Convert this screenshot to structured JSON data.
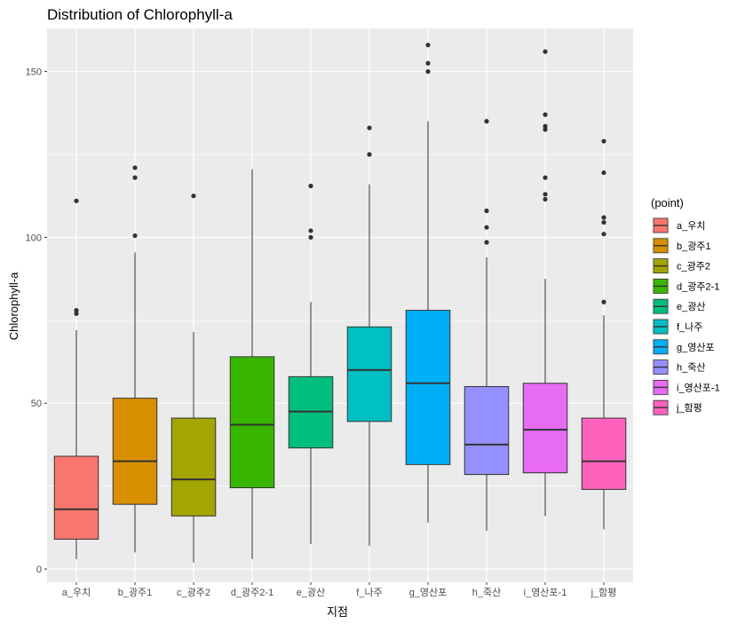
{
  "chart_data": {
    "type": "boxplot",
    "title": "Distribution of Chlorophyll-a",
    "xlabel": "지점",
    "ylabel": "Chlorophyll-a",
    "ylim": [
      -4,
      163
    ],
    "yticks": [
      0,
      50,
      100,
      150
    ],
    "grid": true,
    "legend": {
      "title": "(point)",
      "placement": "right"
    },
    "categories": [
      "a_우치",
      "b_광주1",
      "c_광주2",
      "d_광주2-1",
      "e_광산",
      "f_나주",
      "g_영산포",
      "h_죽산",
      "i_영산포-1",
      "j_함평"
    ],
    "colors": [
      "#F8766D",
      "#D89000",
      "#A3A500",
      "#39B600",
      "#00BF7D",
      "#00BFC4",
      "#00B0F6",
      "#9590FF",
      "#E76BF3",
      "#FF62BC"
    ],
    "boxes": [
      {
        "name": "a_우치",
        "min": 3,
        "q1": 9,
        "median": 18,
        "q3": 34,
        "max": 72,
        "outliers": [
          77,
          78,
          111
        ]
      },
      {
        "name": "b_광주1",
        "min": 5,
        "q1": 19.5,
        "median": 32.5,
        "q3": 51.5,
        "max": 95.5,
        "outliers": [
          100.5,
          118,
          121
        ]
      },
      {
        "name": "c_광주2",
        "min": 2,
        "q1": 16,
        "median": 27,
        "q3": 45.5,
        "max": 71.5,
        "outliers": [
          112.5
        ]
      },
      {
        "name": "d_광주2-1",
        "min": 3,
        "q1": 24.5,
        "median": 43.5,
        "q3": 64,
        "max": 120.5,
        "outliers": []
      },
      {
        "name": "e_광산",
        "min": 7.5,
        "q1": 36.5,
        "median": 47.5,
        "q3": 58,
        "max": 80.5,
        "outliers": [
          100,
          102,
          115.5
        ]
      },
      {
        "name": "f_나주",
        "min": 7,
        "q1": 44.5,
        "median": 60,
        "q3": 73,
        "max": 116,
        "outliers": [
          125,
          133
        ]
      },
      {
        "name": "g_영산포",
        "min": 14,
        "q1": 31.5,
        "median": 56,
        "q3": 78,
        "max": 135,
        "outliers": [
          150,
          152.5,
          158
        ]
      },
      {
        "name": "h_죽산",
        "min": 11.5,
        "q1": 28.5,
        "median": 37.5,
        "q3": 55,
        "max": 94,
        "outliers": [
          98.5,
          103,
          108,
          135
        ]
      },
      {
        "name": "i_영산포-1",
        "min": 16,
        "q1": 29,
        "median": 42,
        "q3": 56,
        "max": 87.5,
        "outliers": [
          111.5,
          113,
          118,
          132.5,
          133.5,
          137,
          156
        ]
      },
      {
        "name": "j_함평",
        "min": 12,
        "q1": 24,
        "median": 32.5,
        "q3": 45.5,
        "max": 76.5,
        "outliers": [
          80.5,
          101,
          104.5,
          106,
          119.5,
          129
        ]
      }
    ]
  }
}
